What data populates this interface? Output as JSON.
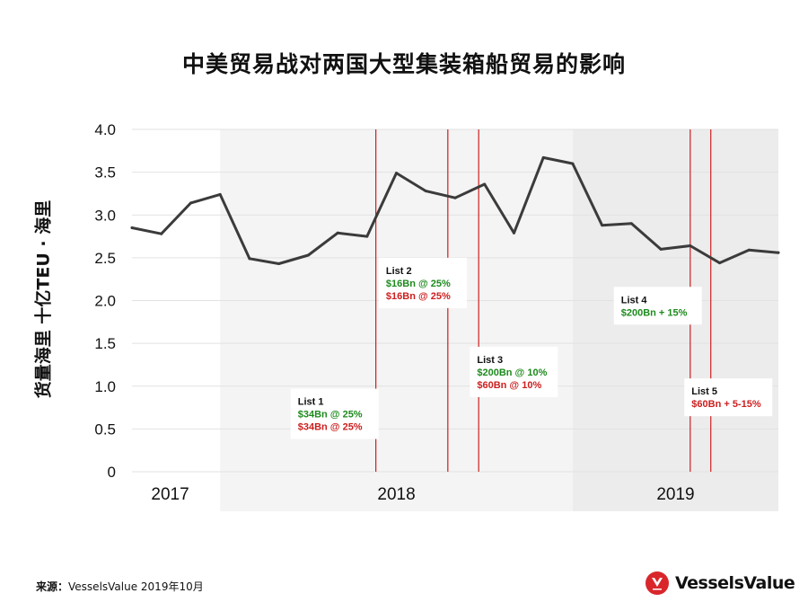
{
  "title": "中美贸易战对两国大型集装箱船贸易的影响",
  "source": {
    "label": "来源：",
    "text": "VesselsValue 2019年10月"
  },
  "brand": {
    "name": "VesselsValue",
    "color": "#d9262b"
  },
  "colors": {
    "line": "#3b3b3b",
    "marker": "#cc1f1f",
    "green": "#1e8a1e",
    "red": "#cc1f1f",
    "band_light": "#f4f4f4",
    "band_dark": "#ececec",
    "grid": "#e2e2e2"
  },
  "chart_data": {
    "type": "line",
    "title": "中美贸易战对两国大型集装箱船贸易的影响",
    "ylabel": "货量海里 十亿TEU · 海里",
    "xlabel": "",
    "ylim": [
      0,
      4.0
    ],
    "yticks": [
      "0",
      "0.5",
      "1.0",
      "1.5",
      "2.0",
      "2.5",
      "3.0",
      "3.5",
      "4.0"
    ],
    "ytick_values": [
      0,
      0.5,
      1.0,
      1.5,
      2.0,
      2.5,
      3.0,
      3.5,
      4.0
    ],
    "xlim": [
      0,
      22
    ],
    "year_labels": [
      {
        "label": "2017",
        "x": 1.3
      },
      {
        "label": "2018",
        "x": 9
      },
      {
        "label": "2019",
        "x": 18.5
      }
    ],
    "year_bands": [
      {
        "year": "2018",
        "start": 3,
        "end": 15,
        "shade": "light"
      },
      {
        "year": "2019",
        "start": 15,
        "end": 22,
        "shade": "dark"
      }
    ],
    "series": [
      {
        "name": "货量海里",
        "x": [
          0,
          1,
          2,
          3,
          4,
          5,
          6,
          7,
          8,
          9,
          10,
          11,
          12,
          13,
          14,
          15,
          16,
          17,
          18,
          19,
          20,
          21,
          22
        ],
        "values": [
          2.85,
          2.78,
          3.14,
          3.24,
          2.49,
          2.43,
          2.53,
          2.79,
          2.75,
          3.49,
          3.28,
          3.2,
          3.36,
          2.79,
          3.67,
          3.6,
          2.88,
          2.9,
          2.6,
          2.64,
          2.44,
          2.59,
          2.56
        ]
      }
    ],
    "event_lines": [
      8.3,
      10.75,
      11.8,
      19.0,
      19.7
    ],
    "annotations": [
      {
        "name": "List 1",
        "x": 5.4,
        "y": 0.97,
        "lines": [
          {
            "text": "$34Bn @ 25%",
            "color": "green"
          },
          {
            "text": "$34Bn @ 25%",
            "color": "red"
          }
        ]
      },
      {
        "name": "List 2",
        "x": 8.4,
        "y": 2.5,
        "lines": [
          {
            "text": "$16Bn @ 25%",
            "color": "green"
          },
          {
            "text": "$16Bn @ 25%",
            "color": "red"
          }
        ]
      },
      {
        "name": "List 3",
        "x": 11.5,
        "y": 1.46,
        "lines": [
          {
            "text": "$200Bn @ 10%",
            "color": "green"
          },
          {
            "text": "$60Bn @ 10%",
            "color": "red"
          }
        ]
      },
      {
        "name": "List 4",
        "x": 16.4,
        "y": 2.16,
        "lines": [
          {
            "text": "$200Bn + 15%",
            "color": "green"
          }
        ]
      },
      {
        "name": "List 5",
        "x": 18.8,
        "y": 1.09,
        "lines": [
          {
            "text": "$60Bn + 5-15%",
            "color": "red"
          }
        ]
      }
    ]
  }
}
